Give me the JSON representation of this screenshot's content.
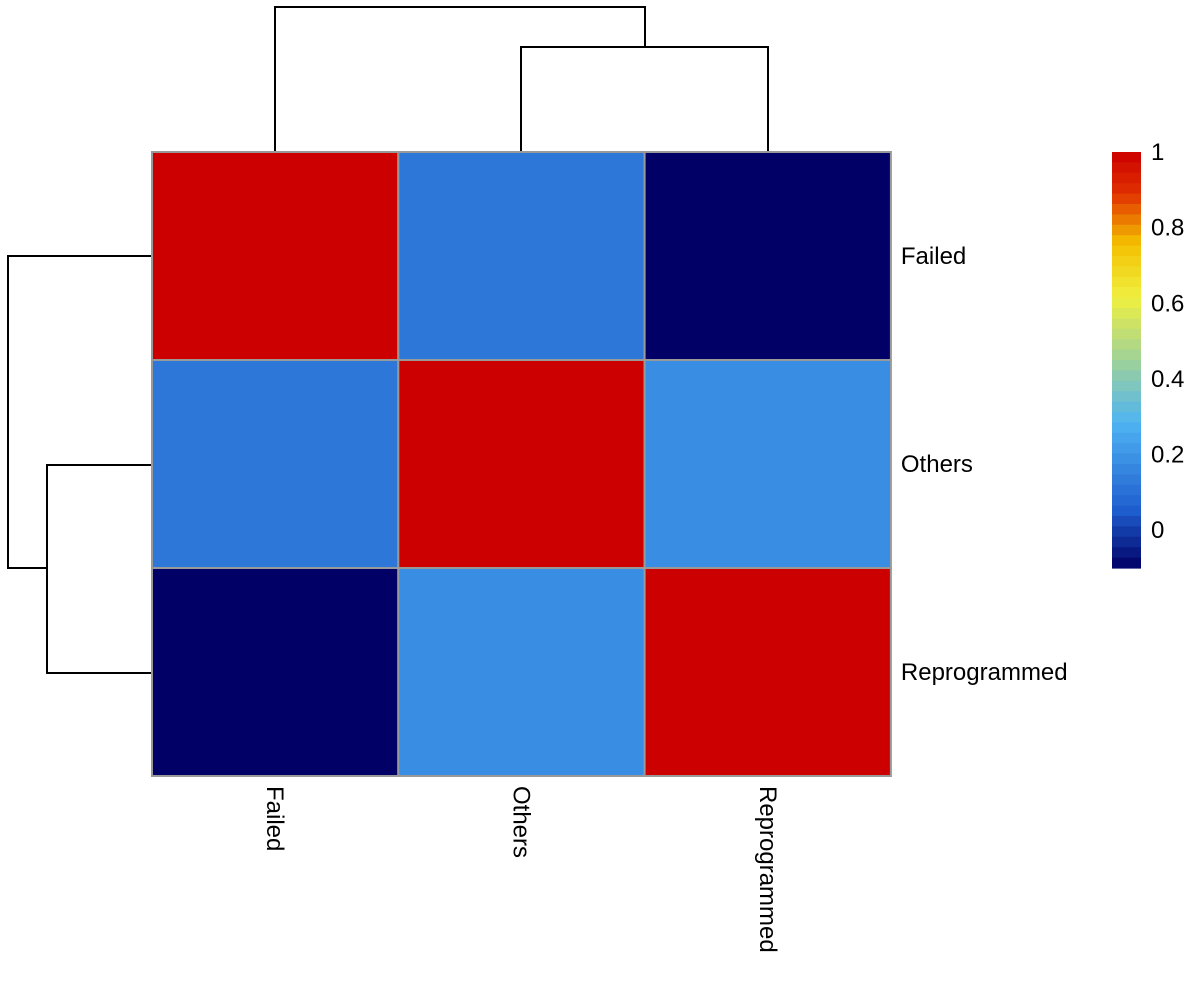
{
  "chart_data": {
    "type": "heatmap",
    "title": "",
    "rows": [
      "Failed",
      "Others",
      "Reprogrammed"
    ],
    "columns": [
      "Failed",
      "Others",
      "Reprogrammed"
    ],
    "values": [
      [
        1.0,
        0.12,
        -0.1
      ],
      [
        0.12,
        1.0,
        0.18
      ],
      [
        -0.1,
        0.18,
        1.0
      ]
    ],
    "value_range": [
      -0.1,
      1.0
    ],
    "legend": {
      "position": "right",
      "ticks": [
        "0",
        "0.2",
        "0.4",
        "0.6",
        "0.8",
        "1"
      ],
      "tick_values": [
        0,
        0.2,
        0.4,
        0.6,
        0.8,
        1.0
      ]
    },
    "colormap": [
      "#000066",
      "#1f5fcf",
      "#4fb4f2",
      "#f0f040",
      "#f5c000",
      "#e03000",
      "#cc0000"
    ],
    "row_dendrogram": "left",
    "column_dendrogram": "top"
  }
}
